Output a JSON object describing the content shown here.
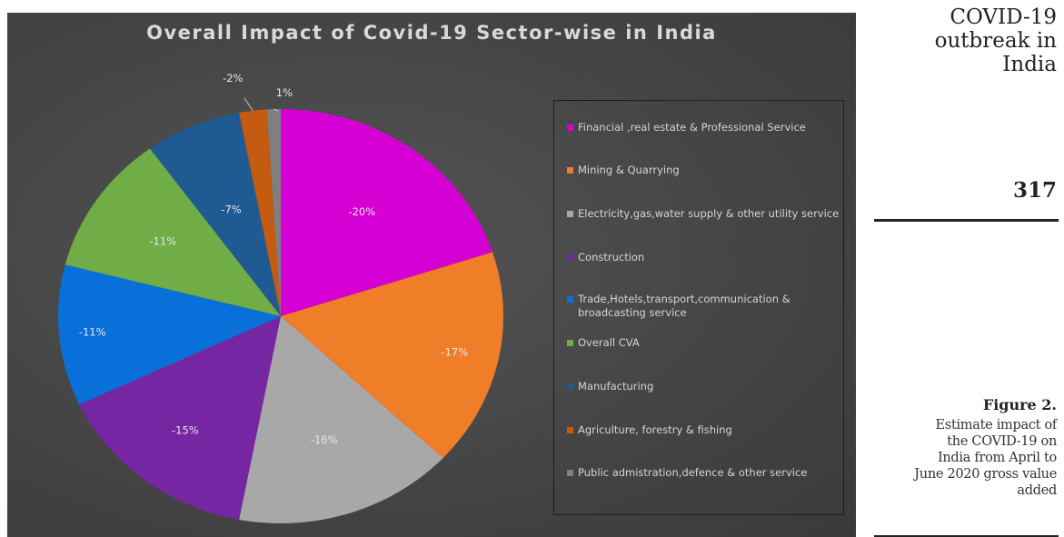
{
  "side": {
    "title_lines": [
      "COVID-19",
      "outbreak in",
      "India"
    ],
    "page_number": "317",
    "figure_label": "Figure 2.",
    "caption_lines": [
      "Estimate impact of",
      "the COVID-19 on",
      "India from April to",
      "June 2020 gross value",
      "added"
    ]
  },
  "chart_data": {
    "type": "pie",
    "title": "Overall Impact of Covid-19 Sector-wise in India",
    "legend_position": "right",
    "slices": [
      {
        "label": "Financial ,real estate & Professional Service",
        "value": 20,
        "display": "-20%",
        "color": "#d400d4"
      },
      {
        "label": "Mining & Quarrying",
        "value": 17,
        "display": "-17%",
        "color": "#f07d28"
      },
      {
        "label": "Electricity,gas,water supply & other utility service",
        "value": 16,
        "display": "-16%",
        "color": "#a8a8a8"
      },
      {
        "label": "Construction",
        "value": 15,
        "display": "-15%",
        "color": "#7726a3"
      },
      {
        "label": "Trade,Hotels,transport,communication & broadcasting service",
        "value": 11,
        "display": "-11%",
        "color": "#0870d8"
      },
      {
        "label": "Overall CVA",
        "value": 11,
        "display": "-11%",
        "color": "#70ad47"
      },
      {
        "label": "Manufacturing",
        "value": 7,
        "display": "-7%",
        "color": "#1f5a93"
      },
      {
        "label": "Agriculture, forestry & fishing",
        "value": 2,
        "display": "-2%",
        "color": "#c55a11"
      },
      {
        "label": "Public admistration,defence & other service",
        "value": 1,
        "display": "1%",
        "color": "#7f7f7f"
      }
    ]
  }
}
